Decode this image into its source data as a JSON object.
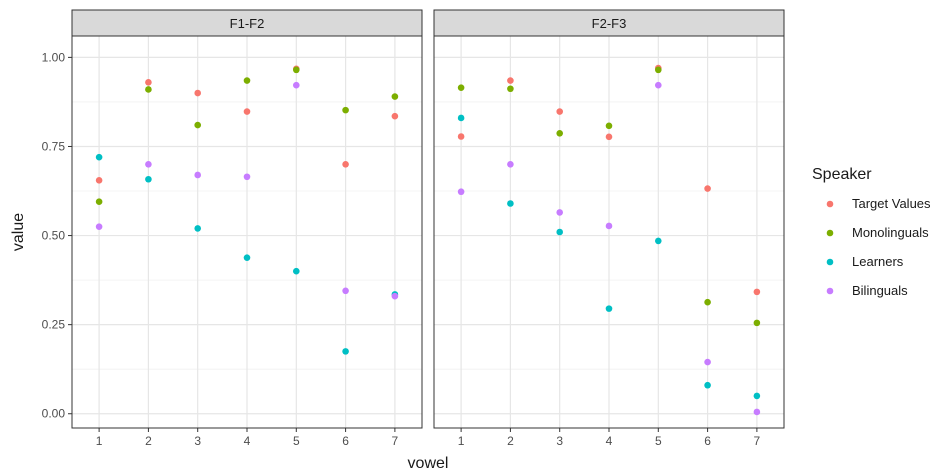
{
  "chart_data": {
    "type": "scatter",
    "xlabel": "vowel",
    "ylabel": "value",
    "x_ticks": [
      "1",
      "2",
      "3",
      "4",
      "5",
      "6",
      "7"
    ],
    "y_ticks": [
      "0.00",
      "0.25",
      "0.50",
      "0.75",
      "1.00"
    ],
    "ylim": [
      -0.04,
      1.06
    ],
    "xlim": [
      0.45,
      7.55
    ],
    "grid": true,
    "legend_title": "Speaker",
    "legend_position": "right",
    "series": [
      {
        "name": "Target Values",
        "color": "#F8766D"
      },
      {
        "name": "Monolinguals",
        "color": "#7CAE00"
      },
      {
        "name": "Learners",
        "color": "#00BFC4"
      },
      {
        "name": "Bilinguals",
        "color": "#C77CFF"
      }
    ],
    "panels": [
      {
        "title": "F1-F2",
        "values": {
          "Target Values": [
            0.655,
            0.93,
            0.9,
            0.848,
            0.968,
            0.7,
            0.835
          ],
          "Monolinguals": [
            0.595,
            0.91,
            0.81,
            0.935,
            0.965,
            0.852,
            0.89
          ],
          "Learners": [
            0.72,
            0.658,
            0.52,
            0.438,
            0.4,
            0.175,
            0.335
          ],
          "Bilinguals": [
            0.525,
            0.7,
            0.67,
            0.665,
            0.922,
            0.345,
            0.33
          ]
        }
      },
      {
        "title": "F2-F3",
        "values": {
          "Target Values": [
            0.778,
            0.935,
            0.848,
            0.777,
            0.97,
            0.632,
            0.342
          ],
          "Monolinguals": [
            0.915,
            0.912,
            0.787,
            0.808,
            0.965,
            0.313,
            0.255
          ],
          "Learners": [
            0.83,
            0.59,
            0.51,
            0.295,
            0.485,
            0.08,
            0.05
          ],
          "Bilinguals": [
            0.623,
            0.7,
            0.565,
            0.527,
            0.922,
            0.145,
            0.005
          ]
        }
      }
    ]
  }
}
